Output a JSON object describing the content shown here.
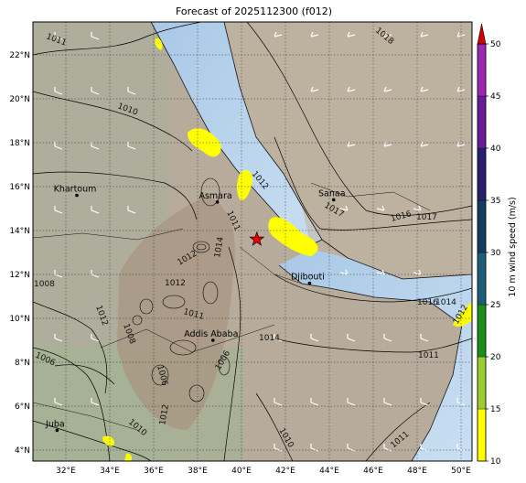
{
  "title": "Forecast of 2025112300 (f012)",
  "chart_data": {
    "type": "map",
    "lon_range": [
      30.5,
      50.5
    ],
    "lat_range": [
      3.5,
      23.5
    ],
    "lon_ticks": [
      "32°E",
      "34°E",
      "36°E",
      "38°E",
      "40°E",
      "42°E",
      "44°E",
      "46°E",
      "48°E",
      "50°E"
    ],
    "lat_ticks": [
      "4°N",
      "6°N",
      "8°N",
      "10°N",
      "12°N",
      "14°N",
      "16°N",
      "18°N",
      "20°N",
      "22°N"
    ],
    "grid": true,
    "colorbar": {
      "label": "10 m wind speed (m/s)",
      "ticks": [
        "10",
        "15",
        "20",
        "25",
        "30",
        "35",
        "40",
        "45",
        "50"
      ],
      "colors": [
        "#ffff00",
        "#9acd32",
        "#228b22",
        "#006400",
        "#1e6080",
        "#163a60",
        "#2a1f6e",
        "#6a1b9a",
        "#9c27b0",
        "#d40000"
      ]
    },
    "cities": [
      {
        "name": "Khartoum",
        "lon": 32.5,
        "lat": 15.6
      },
      {
        "name": "Asmara",
        "lon": 38.9,
        "lat": 15.3
      },
      {
        "name": "Sanaa",
        "lon": 44.2,
        "lat": 15.4
      },
      {
        "name": "Djibouti",
        "lon": 43.1,
        "lat": 11.6
      },
      {
        "name": "Addis Ababa",
        "lon": 38.7,
        "lat": 9.0
      },
      {
        "name": "Juba",
        "lon": 31.6,
        "lat": 4.9
      }
    ],
    "marker": {
      "symbol": "star",
      "color": "#e00000",
      "lon": 40.7,
      "lat": 13.6
    },
    "isobar_labels": [
      "1011",
      "1010",
      "1018",
      "1012",
      "1011",
      "1017",
      "1016",
      "1017",
      "1008",
      "1012",
      "1014",
      "1012",
      "1011",
      "1012",
      "1016",
      "1014",
      "1012",
      "1006",
      "1008",
      "1014",
      "1011",
      "1006",
      "1006",
      "1010",
      "1012",
      "1011",
      "1010"
    ]
  }
}
